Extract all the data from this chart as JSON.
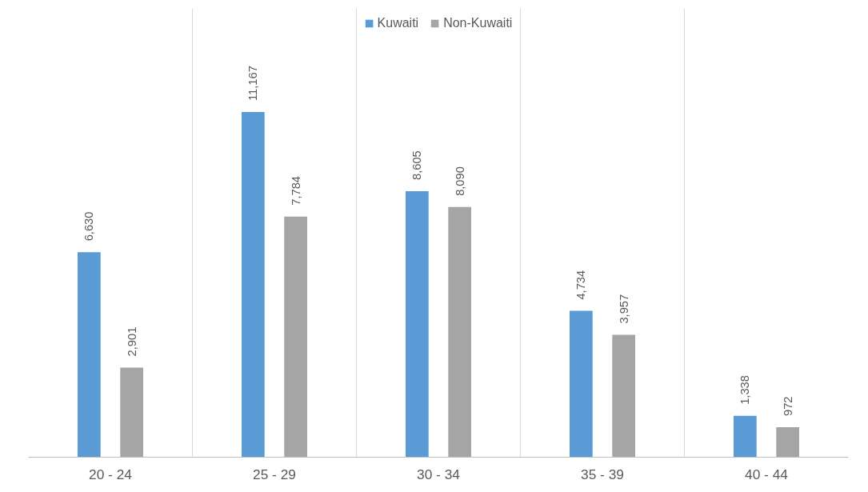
{
  "chart_data": {
    "type": "bar",
    "categories": [
      "20 - 24",
      "25 - 29",
      "30 - 34",
      "35 - 39",
      "40 - 44"
    ],
    "series": [
      {
        "name": "Kuwaiti",
        "color": "#5b9bd5",
        "values": [
          6630,
          11167,
          8605,
          4734,
          1338
        ],
        "value_labels": [
          "6,630",
          "11,167",
          "8,605",
          "4,734",
          "1,338"
        ]
      },
      {
        "name": "Non-Kuwaiti",
        "color": "#a5a5a5",
        "values": [
          2901,
          7784,
          8090,
          3957,
          972
        ],
        "value_labels": [
          "2,901",
          "7,784",
          "8,090",
          "3,957",
          "972"
        ]
      }
    ],
    "legend": "top",
    "grid": "x",
    "tick_labels": "x"
  }
}
